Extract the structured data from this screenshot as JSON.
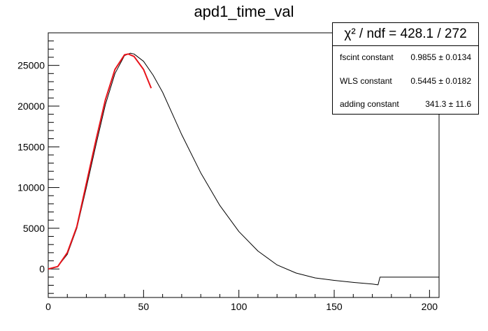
{
  "chart_data": {
    "type": "line",
    "title": "apd1_time_val",
    "xlim": [
      0,
      205
    ],
    "ylim": [
      -3500,
      29000
    ],
    "x_ticks": [
      0,
      50,
      100,
      150,
      200
    ],
    "y_ticks": [
      0,
      5000,
      10000,
      15000,
      20000,
      25000
    ],
    "series": [
      {
        "color": "#000000",
        "style": "histogram",
        "x": [
          0,
          5,
          10,
          15,
          20,
          25,
          30,
          35,
          40,
          43,
          45,
          50,
          55,
          60,
          70,
          80,
          90,
          100,
          110,
          120,
          130,
          140,
          150,
          160,
          170,
          173,
          174,
          205
        ],
        "y": [
          0,
          300,
          1800,
          5000,
          10000,
          15200,
          20200,
          24000,
          26200,
          26500,
          26400,
          25500,
          23800,
          21700,
          16500,
          11800,
          7800,
          4600,
          2200,
          500,
          -500,
          -1100,
          -1400,
          -1650,
          -1850,
          -1950,
          -1000,
          -1000
        ]
      },
      {
        "color": "#e8141b",
        "style": "fit",
        "x": [
          0,
          5,
          10,
          15,
          20,
          25,
          30,
          35,
          40,
          42,
          45,
          50,
          54
        ],
        "y": [
          0,
          300,
          2000,
          5200,
          10500,
          15800,
          20800,
          24500,
          26300,
          26400,
          26100,
          24500,
          22200
        ]
      }
    ],
    "stats": {
      "header": "χ² / ndf = 428.1 / 272",
      "rows": [
        {
          "label": "fscint constant",
          "value": "0.9855 ± 0.0134"
        },
        {
          "label": "WLS constant",
          "value": "0.5445 ± 0.0182"
        },
        {
          "label": "adding constant",
          "value": "341.3 ± 11.6"
        }
      ]
    }
  }
}
